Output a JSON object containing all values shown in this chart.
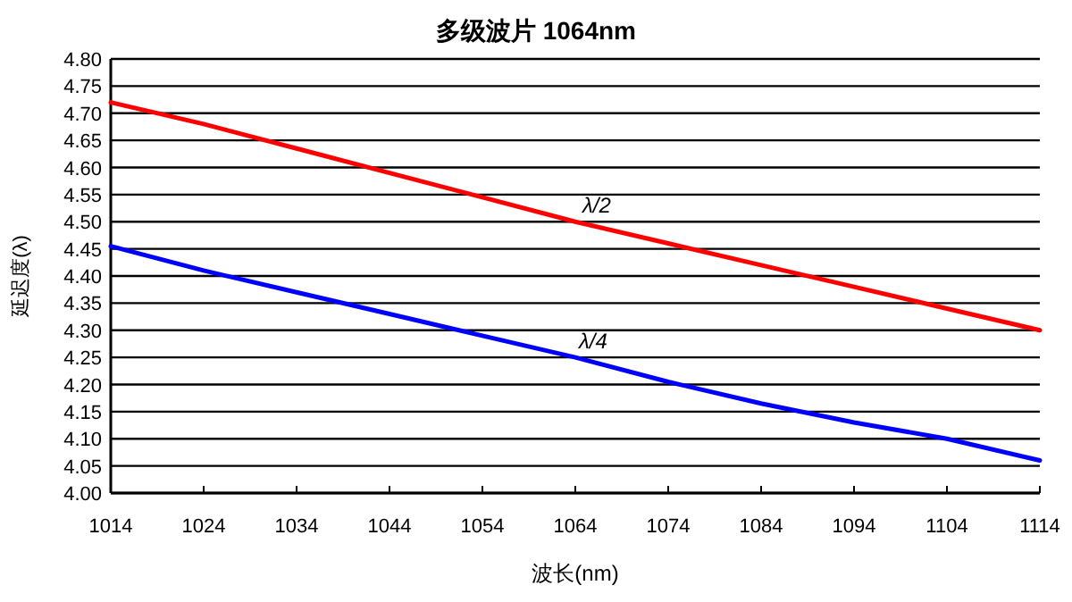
{
  "chart_data": {
    "type": "line",
    "title": "多级波片 1064nm",
    "xlabel": "波长(nm)",
    "ylabel": "延迟度(λ)",
    "x": [
      1014,
      1024,
      1034,
      1044,
      1054,
      1064,
      1074,
      1084,
      1094,
      1104,
      1114
    ],
    "series": [
      {
        "name": "λ/2",
        "color": "#ff0000",
        "values": [
          4.72,
          4.68,
          4.635,
          4.59,
          4.545,
          4.5,
          4.46,
          4.42,
          4.38,
          4.34,
          4.3
        ]
      },
      {
        "name": "λ/4",
        "color": "#0000ff",
        "values": [
          4.455,
          4.41,
          4.37,
          4.33,
          4.29,
          4.25,
          4.205,
          4.165,
          4.13,
          4.1,
          4.06
        ]
      }
    ],
    "xlim": [
      1014,
      1114
    ],
    "xticks": [
      1014,
      1024,
      1034,
      1044,
      1054,
      1064,
      1074,
      1084,
      1094,
      1104,
      1114
    ],
    "ylim": [
      4.0,
      4.8
    ],
    "yticks": [
      {
        "value": 4.0,
        "label": "4.00"
      },
      {
        "value": 4.05,
        "label": "4.05"
      },
      {
        "value": 4.1,
        "label": "4.10"
      },
      {
        "value": 4.15,
        "label": "4.15"
      },
      {
        "value": 4.2,
        "label": "4.20"
      },
      {
        "value": 4.25,
        "label": "4.25"
      },
      {
        "value": 4.3,
        "label": "4.30"
      },
      {
        "value": 4.35,
        "label": "4.35"
      },
      {
        "value": 4.4,
        "label": "4.40"
      },
      {
        "value": 4.45,
        "label": "4.45"
      },
      {
        "value": 4.5,
        "label": "4.50"
      },
      {
        "value": 4.55,
        "label": "4.55"
      },
      {
        "value": 4.6,
        "label": "4.60"
      },
      {
        "value": 4.65,
        "label": "4.65"
      },
      {
        "value": 4.7,
        "label": "4.70"
      },
      {
        "value": 4.75,
        "label": "4.75"
      },
      {
        "value": 4.8,
        "label": "4.80"
      }
    ],
    "grid": "y",
    "marker": "none",
    "line_style": "solid"
  }
}
